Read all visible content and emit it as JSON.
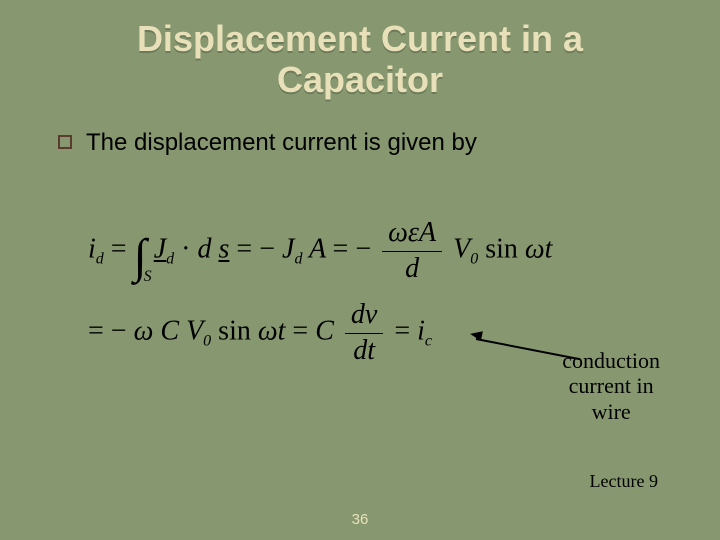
{
  "colors": {
    "background": "#879870",
    "title_text": "#e8e0b8",
    "title_shadow": "#6b7a59",
    "body_text": "#000000",
    "bullet_border": "#5a3b2e",
    "pagenum_text": "#e8e0b8"
  },
  "title": {
    "line1": "Displacement Current in a",
    "line2": "Capacitor"
  },
  "bullet": {
    "text": "The displacement current is given by"
  },
  "equations": {
    "line1": {
      "lhs_var": "i",
      "lhs_sub": "d",
      "integral_sub": "S",
      "J": "J",
      "J_sub": "d",
      "dot": "·",
      "d": "d",
      "s": "s",
      "minus": "−",
      "A": "A",
      "frac_num_omega": "ω",
      "frac_num_eps": "ε",
      "frac_num_A": "A",
      "frac_den": "d",
      "V": "V",
      "V_sub": "0",
      "sin": "sin",
      "omega": "ω",
      "t": "t"
    },
    "line2": {
      "minus": "−",
      "omega": "ω",
      "C": "C",
      "V": "V",
      "V_sub": "0",
      "sin": "sin",
      "t": "t",
      "frac_num_d": "d",
      "frac_num_v": "v",
      "frac_den_d": "d",
      "frac_den_t": "t",
      "i": "i",
      "i_sub": "c"
    }
  },
  "annotation": {
    "line1": "conduction",
    "line2": "current in",
    "line3": "wire"
  },
  "lecture": "Lecture 9",
  "pagenum": "36"
}
